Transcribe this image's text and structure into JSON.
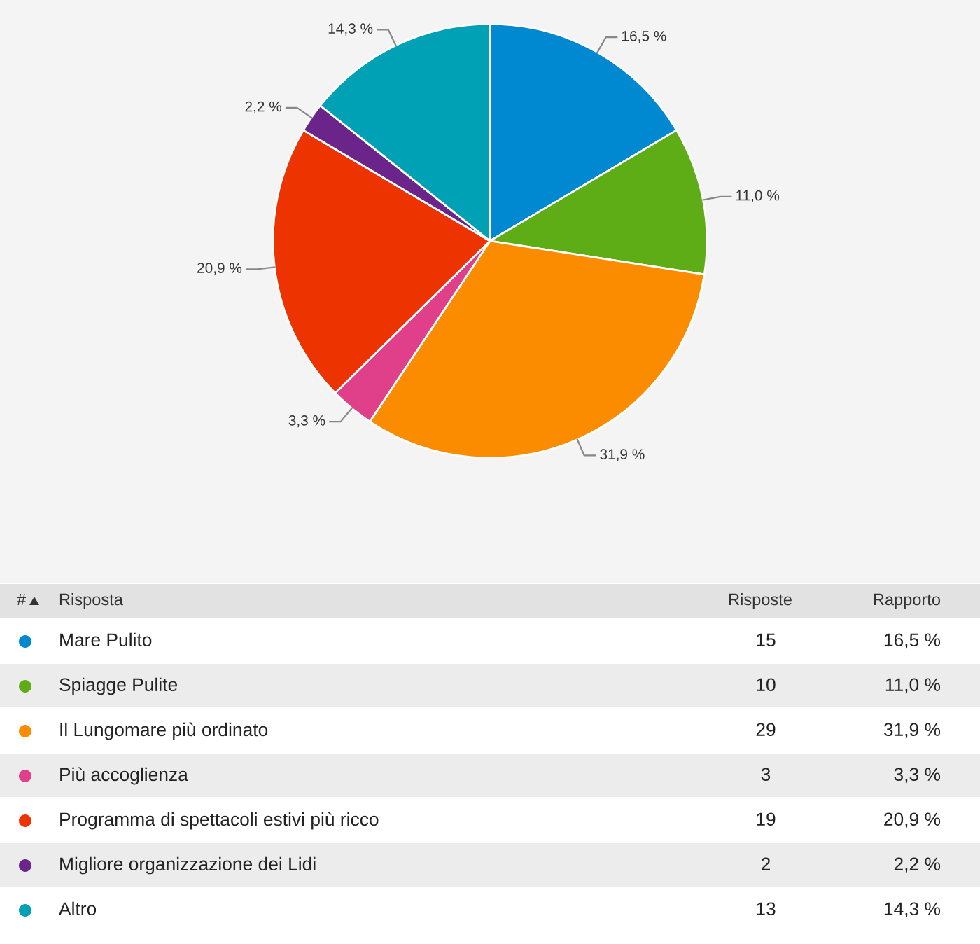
{
  "chart_data": {
    "type": "pie",
    "categories": [
      "Mare Pulito",
      "Spiagge Pulite",
      "Il Lungomare più ordinato",
      "Più accoglienza",
      "Programma di spettacoli estivi più ricco",
      "Migliore organizzazione dei Lidi",
      "Altro"
    ],
    "values": [
      16.5,
      11.0,
      31.9,
      3.3,
      20.9,
      2.2,
      14.3
    ],
    "value_labels": [
      "16,5 %",
      "11,0 %",
      "31,9 %",
      "3,3 %",
      "20,9 %",
      "2,2 %",
      "14,3 %"
    ],
    "colors": [
      "#0088d1",
      "#5fad16",
      "#fb8c00",
      "#e03f8a",
      "#ed3400",
      "#6b2489",
      "#00a0b5"
    ],
    "legend": "bottom",
    "annotations": [
      "#",
      "Risposta",
      "Risposte",
      "Rapporto",
      "15",
      "10",
      "29",
      "3",
      "19",
      "2",
      "13"
    ]
  }
}
